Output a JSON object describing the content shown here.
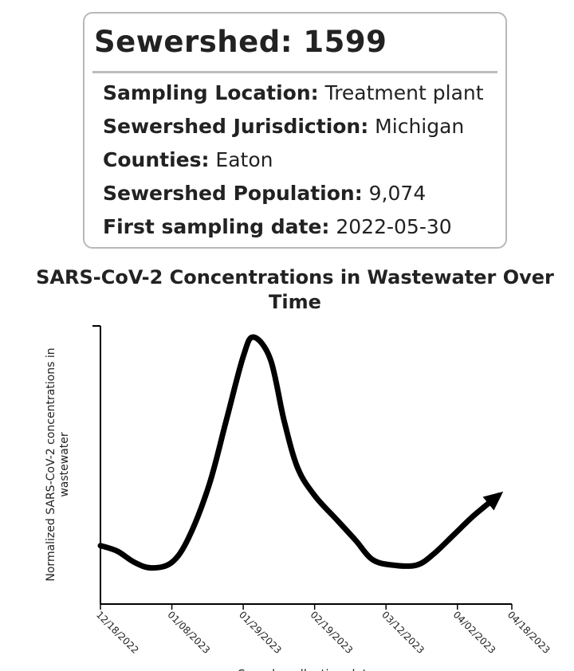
{
  "card": {
    "title": "Sewershed: 1599",
    "rows": [
      {
        "label": "Sampling Location:",
        "value": " Treatment plant"
      },
      {
        "label": "Sewershed Jurisdiction:",
        "value": " Michigan"
      },
      {
        "label": "Counties:",
        "value": " Eaton"
      },
      {
        "label": "Sewershed Population:",
        "value": " 9,074"
      },
      {
        "label": "First sampling date:",
        "value": " 2022-05-30"
      }
    ]
  },
  "chart_data": {
    "type": "line",
    "title": "SARS-CoV-2 Concentrations in Wastewater Over Time",
    "ylabel_lines": [
      "Normalized SARS-CoV-2 concentrations in",
      "wastewater"
    ],
    "xlabel": "Sample collection date",
    "x_ticks": [
      "12/18/2022",
      "01/08/2023",
      "01/29/2023",
      "02/19/2023",
      "03/12/2023",
      "04/02/2023",
      "04/18/2023"
    ],
    "x_tick_days": [
      0,
      21,
      42,
      63,
      84,
      105,
      121
    ],
    "ylim": [
      0,
      100
    ],
    "grid": false,
    "series_color": "#000000",
    "end_marker": "arrow",
    "series": [
      {
        "x": [
          0,
          5,
          10,
          15,
          21,
          26,
          32,
          37,
          42,
          45,
          50,
          54,
          58,
          63,
          69,
          75,
          80,
          86,
          93,
          98,
          104,
          110,
          117
        ],
        "y": [
          21,
          19,
          15,
          13,
          15,
          24,
          43,
          66,
          89,
          96,
          88,
          66,
          49,
          39,
          31,
          23,
          16,
          14,
          14,
          18,
          25,
          32,
          39
        ]
      }
    ]
  }
}
